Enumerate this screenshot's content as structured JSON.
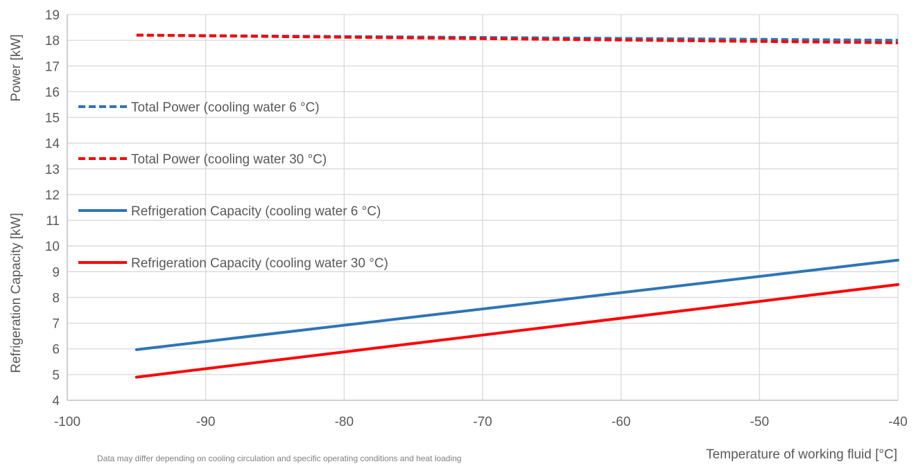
{
  "chart_data": {
    "type": "line",
    "xlabel": "Temperature of working fluid [°C]",
    "ylabel_top": "Power [kW]",
    "ylabel_bottom": "Refrigeration Capacity  [kW]",
    "xlim": [
      -100,
      -40
    ],
    "ylim": [
      4,
      19
    ],
    "xticks": [
      -100,
      -90,
      -80,
      -70,
      -60,
      -50,
      -40
    ],
    "yticks": [
      4,
      5,
      6,
      7,
      8,
      9,
      10,
      11,
      12,
      13,
      14,
      15,
      16,
      17,
      18,
      19
    ],
    "grid": true,
    "legend_position": "left",
    "note": "Data may differ depending on cooling circulation and specific operating conditions and heat loading",
    "series": [
      {
        "name": "Total Power (cooling water 6 °C)",
        "color": "#2E75B6",
        "dashed": true,
        "x": [
          -95,
          -40
        ],
        "y": [
          18.2,
          18.0
        ]
      },
      {
        "name": "Total Power (cooling water 30 °C)",
        "color": "#FF0000",
        "dashed": true,
        "x": [
          -95,
          -40
        ],
        "y": [
          18.2,
          17.9
        ]
      },
      {
        "name": "Refrigeration Capacity (cooling water 6 °C)",
        "color": "#2E75B6",
        "dashed": false,
        "x": [
          -95,
          -40
        ],
        "y": [
          5.97,
          9.45
        ]
      },
      {
        "name": "Refrigeration Capacity (cooling water 30 °C)",
        "color": "#FF0000",
        "dashed": false,
        "x": [
          -95,
          -40
        ],
        "y": [
          4.9,
          8.5
        ]
      }
    ]
  }
}
